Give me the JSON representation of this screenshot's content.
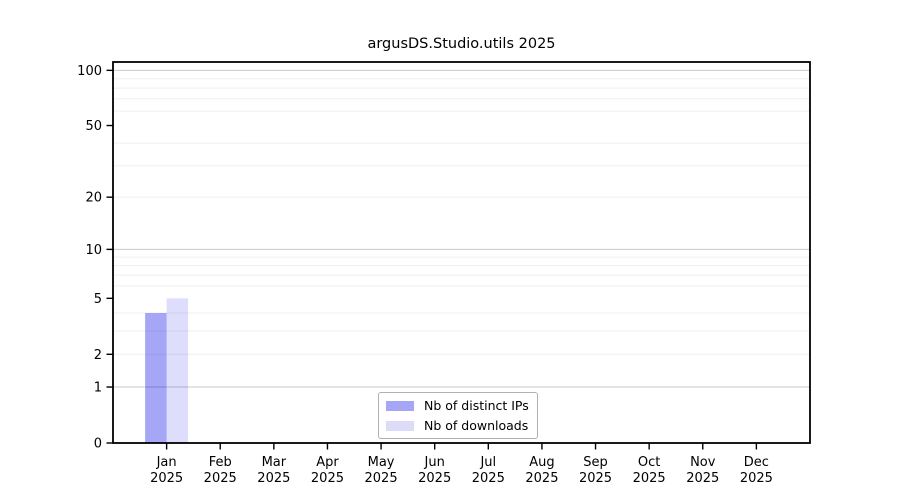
{
  "chart_data": {
    "type": "bar",
    "title": "argusDS.Studio.utils 2025",
    "categories": [
      {
        "month": "Jan",
        "year": "2025"
      },
      {
        "month": "Feb",
        "year": "2025"
      },
      {
        "month": "Mar",
        "year": "2025"
      },
      {
        "month": "Apr",
        "year": "2025"
      },
      {
        "month": "May",
        "year": "2025"
      },
      {
        "month": "Jun",
        "year": "2025"
      },
      {
        "month": "Jul",
        "year": "2025"
      },
      {
        "month": "Aug",
        "year": "2025"
      },
      {
        "month": "Sep",
        "year": "2025"
      },
      {
        "month": "Oct",
        "year": "2025"
      },
      {
        "month": "Nov",
        "year": "2025"
      },
      {
        "month": "Dec",
        "year": "2025"
      }
    ],
    "series": [
      {
        "name": "Nb of distinct IPs",
        "swatch_color": "#a6a6f6",
        "fill_opacity": 0.35,
        "values": [
          4,
          0,
          0,
          0,
          0,
          0,
          0,
          0,
          0,
          0,
          0,
          0
        ]
      },
      {
        "name": "Nb of downloads",
        "swatch_color": "#dcdcf9",
        "fill_opacity": 0.13,
        "values": [
          5,
          0,
          0,
          0,
          0,
          0,
          0,
          0,
          0,
          0,
          0,
          0
        ]
      }
    ],
    "bar_base_color": "#0000e6",
    "yscale": "log1p",
    "ylim": [
      0,
      111
    ],
    "ytick_values": [
      100,
      50,
      20,
      10,
      5,
      2,
      1,
      0
    ],
    "grid": {
      "major_values": [
        1,
        10,
        100
      ],
      "minor_values": [
        2,
        3,
        4,
        6,
        7,
        8,
        9,
        20,
        30,
        40,
        60,
        70,
        80,
        90
      ],
      "major_color": "#c9c9c9",
      "minor_color": "#efefef"
    },
    "legend_position": "lower center",
    "axis_color": "#000000",
    "xlabel": "",
    "ylabel": ""
  }
}
